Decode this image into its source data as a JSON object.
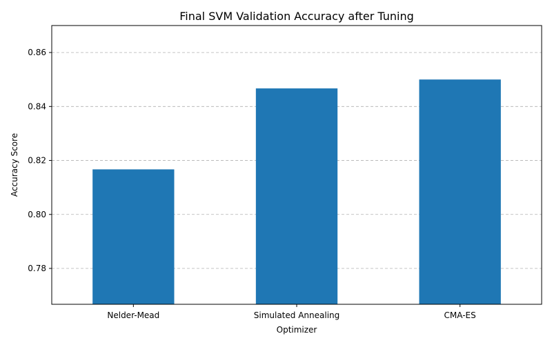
{
  "chart_data": {
    "type": "bar",
    "title": "Final SVM Validation Accuracy after Tuning",
    "xlabel": "Optimizer",
    "ylabel": "Accuracy Score",
    "categories": [
      "Nelder-Mead",
      "Simulated Annealing",
      "CMA-ES"
    ],
    "values": [
      0.8167,
      0.8467,
      0.85
    ],
    "ylim": [
      0.7667,
      0.87
    ],
    "yticks": [
      0.78,
      0.8,
      0.82,
      0.84,
      0.86
    ],
    "ytick_labels": [
      "0.78",
      "0.80",
      "0.82",
      "0.84",
      "0.86"
    ],
    "grid": "y-dashed",
    "bar_color": "#1f77b4",
    "legend": "none"
  }
}
